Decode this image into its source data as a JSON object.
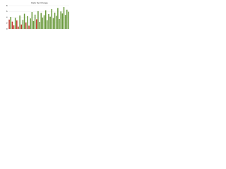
{
  "chart_data": {
    "type": "bar",
    "title": "Daily Net Change",
    "values": [
      3.2,
      4.1,
      2.5,
      1.2,
      3.8,
      2.9,
      0.8,
      4.6,
      1.5,
      3.1,
      5.2,
      2.2,
      4.4,
      1.1,
      3.6,
      5.8,
      2.7,
      4.9,
      3.3,
      6.1,
      2.4,
      5.5,
      3.9,
      4.7,
      6.4,
      3.0,
      5.1,
      4.2,
      6.8,
      3.7,
      5.6,
      4.5,
      7.2,
      3.4,
      6.0,
      5.3,
      7.5,
      4.8,
      6.6,
      5.9
    ],
    "colors": [
      "#c0392b",
      "#6a9a3c",
      "#c0392b",
      "#c0392b",
      "#6a9a3c",
      "#c0392b",
      "#c0392b",
      "#6a9a3c",
      "#c0392b",
      "#6a9a3c",
      "#6a9a3c",
      "#c0392b",
      "#6a9a3c",
      "#c0392b",
      "#6a9a3c",
      "#6a9a3c",
      "#6a9a3c",
      "#6a9a3c",
      "#c0392b",
      "#6a9a3c",
      "#6a9a3c",
      "#6a9a3c",
      "#6a9a3c",
      "#6a9a3c",
      "#6a9a3c",
      "#6a9a3c",
      "#6a9a3c",
      "#6a9a3c",
      "#6a9a3c",
      "#6a9a3c",
      "#6a9a3c",
      "#6a9a3c",
      "#6a9a3c",
      "#6a9a3c",
      "#6a9a3c",
      "#6a9a3c",
      "#6a9a3c",
      "#6a9a3c",
      "#6a9a3c",
      "#6a9a3c"
    ],
    "ylim": [
      0,
      8
    ],
    "yticks": [
      0,
      2,
      4,
      6,
      8
    ],
    "grid": true
  }
}
